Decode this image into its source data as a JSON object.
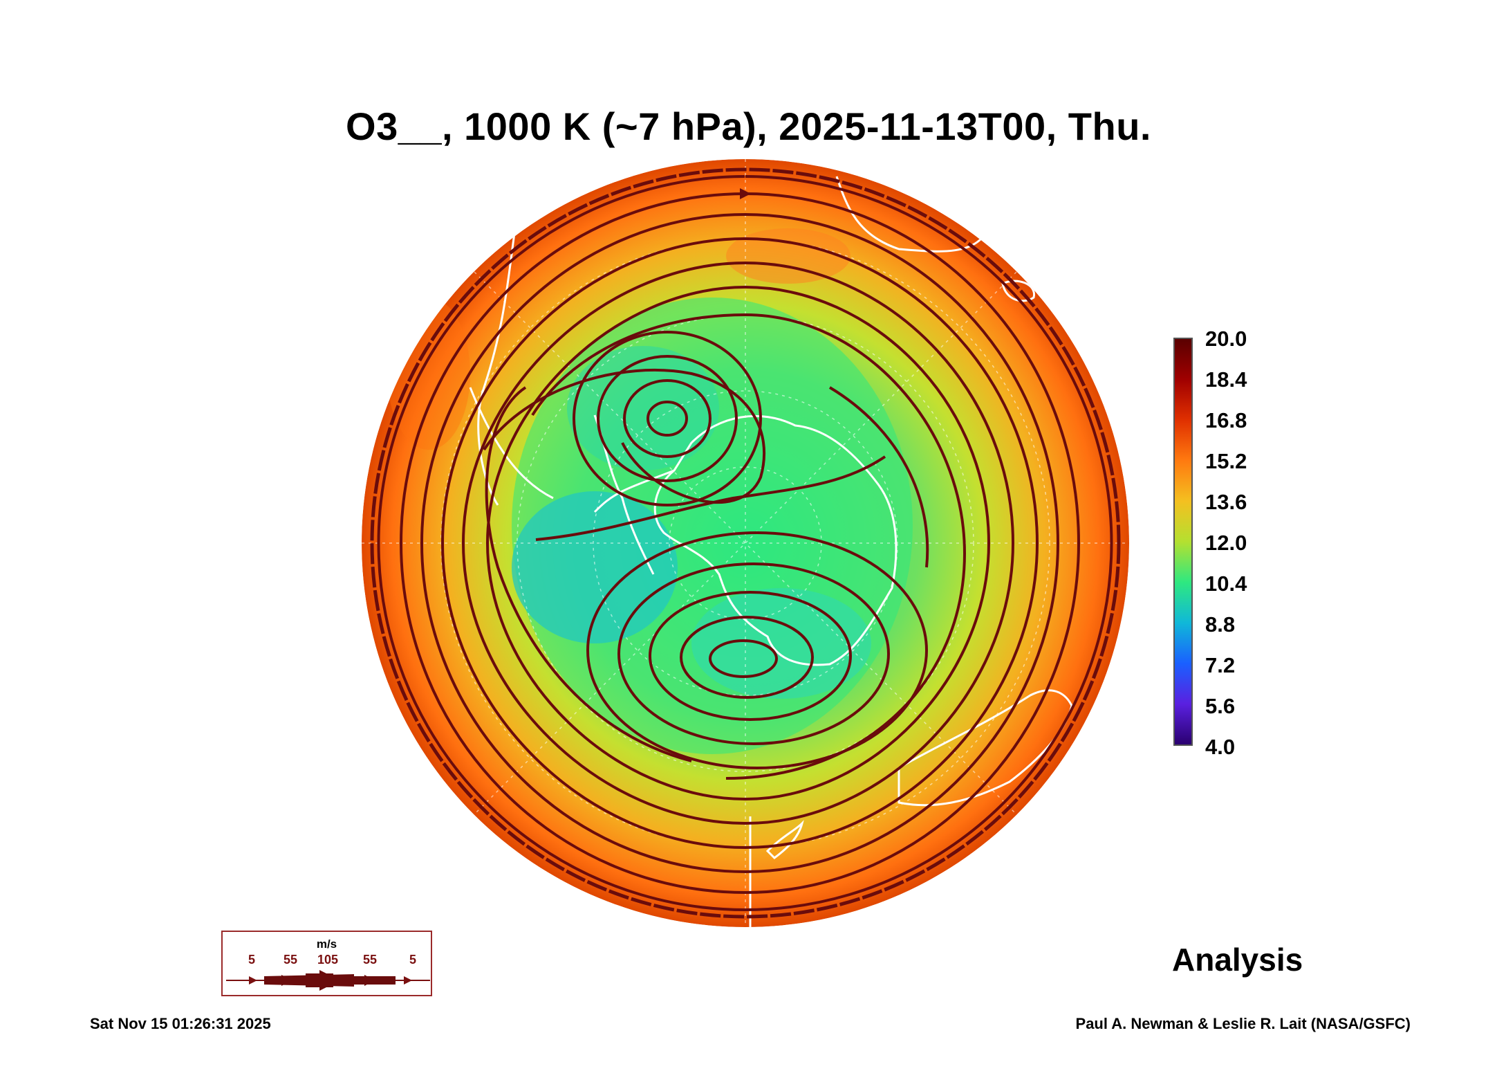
{
  "title": "O3__, 1000 K (~7 hPa), 2025-11-13T00, Thu.",
  "colorbar": {
    "ticks": [
      "20.0",
      "18.4",
      "16.8",
      "15.2",
      "13.6",
      "12.0",
      "10.4",
      "8.8",
      "7.2",
      "5.6",
      "4.0"
    ],
    "colors": [
      "#5a0000",
      "#a00000",
      "#e03000",
      "#ff7a10",
      "#f4c020",
      "#b4e030",
      "#2ee880",
      "#10b8d8",
      "#1a60ff",
      "#5a20e0",
      "#2a0070"
    ]
  },
  "wind_legend": {
    "unit": "m/s",
    "speeds": [
      "5",
      "55",
      "105",
      "55",
      "5"
    ]
  },
  "analysis_label": "Analysis",
  "timestamp": "Sat Nov 15 01:26:31 2025",
  "credit": "Paul A. Newman & Leslie R. Lait (NASA/GSFC)"
}
